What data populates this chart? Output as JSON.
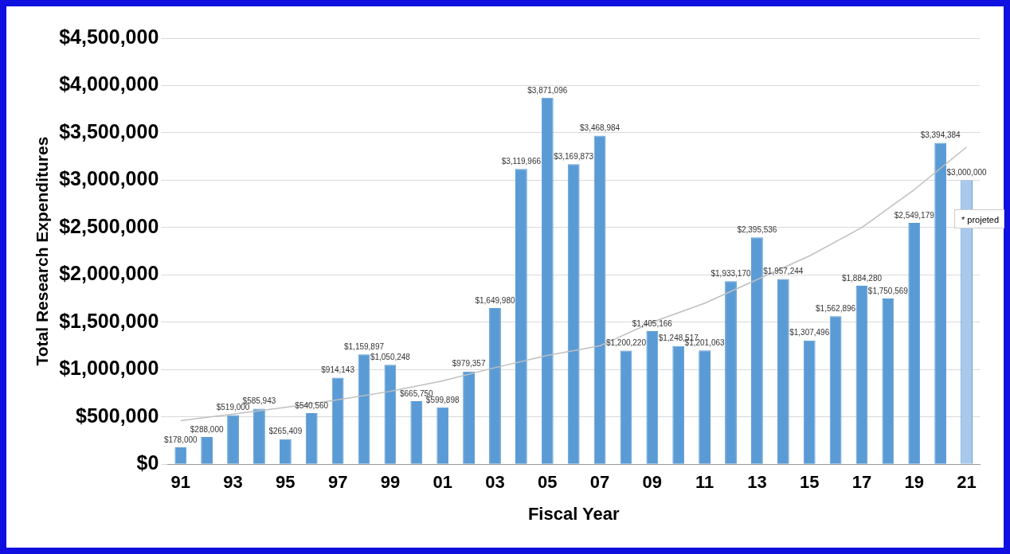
{
  "chart_data": {
    "type": "bar",
    "xlabel": "Fiscal Year",
    "ylabel": "Total Research Expenditures",
    "categories": [
      "91",
      null,
      "93",
      null,
      "95",
      null,
      "97",
      null,
      "99",
      null,
      "01",
      null,
      "03",
      null,
      "05",
      null,
      "07",
      null,
      "09",
      null,
      "11",
      null,
      "13",
      null,
      "15",
      null,
      "17",
      null,
      "19",
      null,
      "21"
    ],
    "series": [
      {
        "color": "#5b9bd5",
        "colors": [
          "#5b9bd5",
          "#5b9bd5",
          "#5b9bd5",
          "#5b9bd5",
          "#5b9bd5",
          "#5b9bd5",
          "#5b9bd5",
          "#5b9bd5",
          "#5b9bd5",
          "#5b9bd5",
          "#5b9bd5",
          "#5b9bd5",
          "#5b9bd5",
          "#5b9bd5",
          "#5b9bd5",
          "#5b9bd5",
          "#5b9bd5",
          "#5b9bd5",
          "#5b9bd5",
          "#5b9bd5",
          "#5b9bd5",
          "#5b9bd5",
          "#5b9bd5",
          "#5b9bd5",
          "#5b9bd5",
          "#5b9bd5",
          "#5b9bd5",
          "#5b9bd5",
          "#5b9bd5",
          "#5b9bd5",
          "#a9c9ea"
        ],
        "values": [
          178000,
          288000,
          519000,
          585943,
          265409,
          540560,
          914143,
          1159897,
          1050248,
          665750,
          599898,
          979357,
          1649980,
          3119966,
          3871096,
          3169873,
          3468984,
          1200220,
          1405166,
          1248517,
          1201063,
          1933170,
          2395536,
          1957244,
          1307496,
          1562896,
          1884280,
          1750569,
          2549179,
          3394384,
          3000000
        ],
        "value_labels": [
          "$178,000",
          "$288,000",
          "$519,000",
          "$585,943",
          "$265,409",
          "$540,560",
          "$914,143",
          "$1,159,897",
          "$1,050,248",
          "$665,750",
          "$599,898",
          "$979,357",
          "$1,649,980",
          "$3,119,966",
          "$3,871,096",
          "$3,169,873",
          "$3,468,984",
          "$1,200,220",
          "$1,405,166",
          "$1,248,517",
          "$1,201,063",
          "$1,933,170",
          "$2,395,536",
          "$1,957,244",
          "$1,307,496",
          "$1,562,896",
          "$1,884,280",
          "$1,750,569",
          "$2,549,179",
          "$3,394,384",
          "$3,000,000"
        ]
      },
      {
        "type": "line",
        "color": "#bfbfbf",
        "marker": "none",
        "values": [
          460000,
          null,
          530000,
          null,
          600000,
          null,
          680000,
          null,
          770000,
          null,
          880000,
          null,
          1020000,
          null,
          1150000,
          null,
          1250000,
          null,
          1500000,
          null,
          1700000,
          null,
          1950000,
          null,
          2200000,
          null,
          2500000,
          null,
          2900000,
          null,
          3350000
        ]
      }
    ],
    "ylim": [
      0,
      4500000
    ],
    "yticks": [
      {
        "value": 0,
        "label": "$0"
      },
      {
        "value": 500000,
        "label": "$500,000"
      },
      {
        "value": 1000000,
        "label": "$1,000,000"
      },
      {
        "value": 1500000,
        "label": "$1,500,000"
      },
      {
        "value": 2000000,
        "label": "$2,000,000"
      },
      {
        "value": 2500000,
        "label": "$2,500,000"
      },
      {
        "value": 3000000,
        "label": "$3,000,000"
      },
      {
        "value": 3500000,
        "label": "$3,500,000"
      },
      {
        "value": 4000000,
        "label": "$4,000,000"
      },
      {
        "value": 4500000,
        "label": "$4,500,000"
      }
    ],
    "grid": "y",
    "legend": false,
    "annotations": [
      "* projeted"
    ]
  }
}
